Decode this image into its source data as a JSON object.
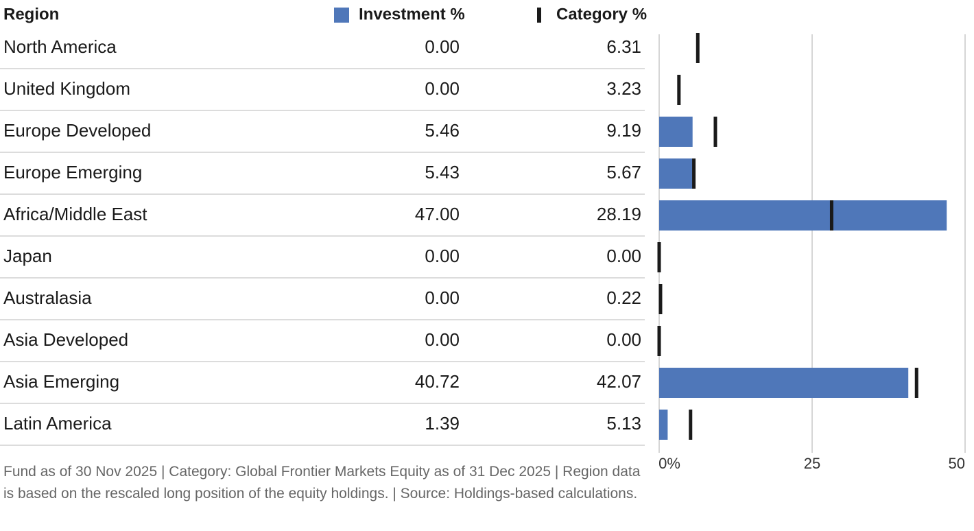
{
  "chart_data": {
    "type": "bar",
    "header": "Region",
    "categories": [
      "North America",
      "United Kingdom",
      "Europe Developed",
      "Europe Emerging",
      "Africa/Middle East",
      "Japan",
      "Australasia",
      "Asia Developed",
      "Asia Emerging",
      "Latin America"
    ],
    "series": [
      {
        "name": "Investment %",
        "color": "#4f77b9",
        "values": [
          0,
          0,
          5.46,
          5.43,
          47,
          0,
          0,
          0,
          40.72,
          1.39
        ],
        "value_labels": [
          "0.00",
          "0.00",
          "5.46",
          "5.43",
          "47.00",
          "0.00",
          "0.00",
          "0.00",
          "40.72",
          "1.39"
        ]
      },
      {
        "name": "Category %",
        "color": "#1a1a1a",
        "values": [
          6.31,
          3.23,
          9.19,
          5.67,
          28.19,
          0,
          0.22,
          0,
          42.07,
          5.13
        ],
        "value_labels": [
          "6.31",
          "3.23",
          "9.19",
          "5.67",
          "28.19",
          "0.00",
          "0.22",
          "0.00",
          "42.07",
          "5.13"
        ]
      }
    ],
    "xlim": [
      0,
      50
    ],
    "xticks": [
      {
        "value": 0,
        "label": "0%"
      },
      25,
      50
    ],
    "grid": true,
    "footnote": "Fund as of 30 Nov 2025 | Category: Global Frontier Markets Equity as of 31 Dec 2025 | Region data is based on the rescaled long position of the equity holdings. | Source: Holdings-based calculations."
  }
}
